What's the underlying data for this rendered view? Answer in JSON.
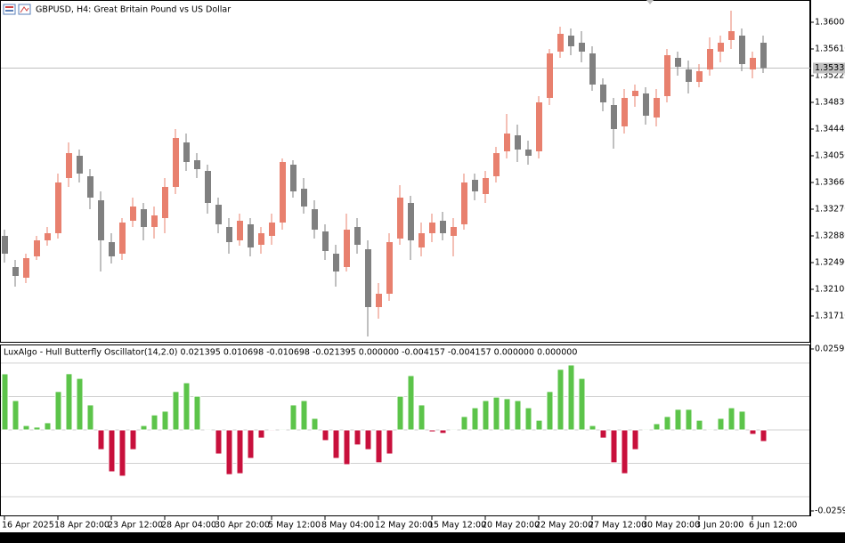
{
  "chart_data": [
    {
      "type": "candlestick",
      "title": "GBPUSD, H4:  Great Britain Pound vs US Dollar",
      "up_color": "#e8806e",
      "down_color": "#808080",
      "open": [
        1.3288,
        1.32425,
        1.32269,
        1.32581,
        1.32815,
        1.32919,
        1.33725,
        1.3405,
        1.33751,
        1.334,
        1.32789,
        1.3262,
        1.33101,
        1.3327,
        1.3301,
        1.3314,
        1.33595,
        1.34245,
        1.33985,
        1.33829,
        1.33335,
        1.3301,
        1.32815,
        1.33049,
        1.3275,
        1.3288,
        1.33075,
        1.3392,
        1.33569,
        1.3327,
        1.32945,
        1.3262,
        1.32425,
        1.3301,
        1.32685,
        1.3184,
        1.32035,
        1.32841,
        1.33361,
        1.32711,
        1.32919,
        1.33101,
        1.3288,
        1.33049,
        1.33699,
        1.33491,
        1.33751,
        1.34115,
        1.34349,
        1.34141,
        1.34115,
        1.34895,
        1.35571,
        1.35805,
        1.35701,
        1.35545,
        1.3509,
        1.34791,
        1.34479,
        1.34921,
        1.3496,
        1.34609,
        1.34921,
        1.3548,
        1.35311,
        1.35129,
        1.35311,
        1.35571,
        1.3574,
        1.35805,
        1.35311,
        1.35701
      ],
      "high": [
        1.32971,
        1.32529,
        1.3262,
        1.3288,
        1.3301,
        1.3379,
        1.34245,
        1.34141,
        1.33855,
        1.3353,
        1.32919,
        1.3314,
        1.33439,
        1.33361,
        1.33309,
        1.33725,
        1.3444,
        1.34375,
        1.34089,
        1.3392,
        1.33439,
        1.3314,
        1.33205,
        1.3314,
        1.3301,
        1.33205,
        1.34011,
        1.33985,
        1.33725,
        1.334,
        1.33049,
        1.3275,
        1.33205,
        1.3314,
        1.32815,
        1.32191,
        1.32919,
        1.33621,
        1.33465,
        1.33075,
        1.33205,
        1.33231,
        1.3314,
        1.3379,
        1.3379,
        1.33829,
        1.3418,
        1.34661,
        1.34505,
        1.34271,
        1.34921,
        1.3561,
        1.35935,
        1.35909,
        1.3587,
        1.35649,
        1.35181,
        1.34895,
        1.35025,
        1.3509,
        1.35051,
        1.35025,
        1.3561,
        1.35571,
        1.35441,
        1.35389,
        1.35779,
        1.35805,
        1.36169,
        1.35909,
        1.35571,
        1.35805
      ],
      "low": [
        1.3249,
        1.32139,
        1.32191,
        1.32529,
        1.32737,
        1.32841,
        1.33595,
        1.3366,
        1.3327,
        1.3236,
        1.32477,
        1.32529,
        1.3301,
        1.32815,
        1.32841,
        1.32919,
        1.33491,
        1.33829,
        1.33725,
        1.33205,
        1.32919,
        1.3262,
        1.32737,
        1.32581,
        1.3262,
        1.3275,
        1.32971,
        1.33439,
        1.33205,
        1.32841,
        1.32529,
        1.32139,
        1.3236,
        1.3262,
        1.31411,
        1.31671,
        1.31931,
        1.3275,
        1.32529,
        1.32581,
        1.32789,
        1.32815,
        1.32581,
        1.32971,
        1.334,
        1.33361,
        1.3366,
        1.34011,
        1.33959,
        1.3392,
        1.34011,
        1.34791,
        1.3548,
        1.35519,
        1.35415,
        1.34999,
        1.347,
        1.34154,
        1.34375,
        1.34765,
        1.34505,
        1.34479,
        1.3483,
        1.3522,
        1.3496,
        1.35051,
        1.3522,
        1.35415,
        1.3561,
        1.35285,
        1.35181,
        1.35259
      ],
      "close": [
        1.3262,
        1.32295,
        1.32555,
        1.32815,
        1.32919,
        1.3366,
        1.34089,
        1.3379,
        1.33439,
        1.32815,
        1.32581,
        1.33075,
        1.33309,
        1.3301,
        1.33179,
        1.33595,
        1.3431,
        1.33959,
        1.33855,
        1.33361,
        1.33049,
        1.32789,
        1.33101,
        1.32711,
        1.32919,
        1.33075,
        1.33959,
        1.3353,
        1.33309,
        1.32971,
        1.32659,
        1.3236,
        1.32971,
        1.3275,
        1.3184,
        1.32035,
        1.32789,
        1.33439,
        1.32815,
        1.32919,
        1.33075,
        1.32919,
        1.3301,
        1.3366,
        1.3353,
        1.33725,
        1.34089,
        1.34375,
        1.34141,
        1.3405,
        1.3483,
        1.35545,
        1.35831,
        1.35649,
        1.35571,
        1.3509,
        1.3483,
        1.3444,
        1.34895,
        1.34999,
        1.34635,
        1.34895,
        1.35519,
        1.3535,
        1.35129,
        1.35285,
        1.3561,
        1.35701,
        1.3587,
        1.35389,
        1.3548,
        1.35331
      ],
      "ylim": [
        1.3132,
        1.36325
      ],
      "yticks": [
        {
          "value": 1.36,
          "label": "1.36000"
        },
        {
          "value": 1.3561,
          "label": "1.35610"
        },
        {
          "value": 1.3522,
          "label": "1.35220"
        },
        {
          "value": 1.3483,
          "label": "1.34830"
        },
        {
          "value": 1.3444,
          "label": "1.34440"
        },
        {
          "value": 1.3405,
          "label": "1.34050"
        },
        {
          "value": 1.3366,
          "label": "1.33660"
        },
        {
          "value": 1.3327,
          "label": "1.33270"
        },
        {
          "value": 1.3288,
          "label": "1.32880"
        },
        {
          "value": 1.3249,
          "label": "1.32490"
        },
        {
          "value": 1.321,
          "label": "1.32100"
        },
        {
          "value": 1.3171,
          "label": "1.31710"
        }
      ],
      "last_price": 1.35331
    },
    {
      "type": "bar",
      "title": "LuxAlgo - Hull Butterfly Oscillator(14,2.0) 0.021395 0.010698 -0.010698 -0.021395 0.000000 -0.004157 -0.004157 0.000000 0.000000",
      "up_color": "#5cc44a",
      "down_color": "#c8103c",
      "categories": [
        "16 Apr 2025",
        null,
        null,
        null,
        null,
        "18 Apr 20:00",
        null,
        null,
        null,
        null,
        "23 Apr 12:00",
        null,
        null,
        null,
        null,
        "28 Apr 04:00",
        null,
        null,
        null,
        null,
        "30 Apr 20:00",
        null,
        null,
        null,
        null,
        "5 May 12:00",
        null,
        null,
        null,
        null,
        "8 May 04:00",
        null,
        null,
        null,
        null,
        "12 May 20:00",
        null,
        null,
        null,
        null,
        "15 May 12:00",
        null,
        null,
        null,
        null,
        "20 May 20:00",
        null,
        null,
        null,
        null,
        "22 May 20:00",
        null,
        null,
        null,
        null,
        "27 May 12:00",
        null,
        null,
        null,
        null,
        "30 May 20:00",
        null,
        null,
        null,
        null,
        "3 Jun 20:00",
        null,
        null,
        null,
        null,
        "6 Jun 12:00",
        null
      ],
      "values": [
        0.01796,
        0.0094,
        0.0014,
        0.0009,
        0.0023,
        0.0123,
        0.018,
        0.0165,
        0.008,
        -0.0063,
        -0.0134,
        -0.0148,
        -0.0063,
        0.0014,
        0.0048,
        0.006,
        0.0123,
        0.0151,
        0.0108,
        0.0003,
        -0.0077,
        -0.0143,
        -0.014,
        -0.0091,
        -0.0026,
        -0.0003,
        0.0003,
        0.008,
        0.0094,
        0.0037,
        -0.0034,
        -0.0091,
        -0.0111,
        -0.0048,
        -0.0063,
        -0.0105,
        -0.0077,
        0.0108,
        0.0174,
        0.008,
        -0.0006,
        -0.0011,
        0.0003,
        0.0043,
        0.0071,
        0.0094,
        0.0105,
        0.01,
        0.0094,
        0.0071,
        0.0031,
        0.0123,
        0.0194,
        0.0208,
        0.0165,
        0.0014,
        -0.0026,
        -0.0105,
        -0.014,
        -0.0063,
        0.0003,
        0.002,
        0.0043,
        0.0066,
        0.0066,
        0.0031,
        0.0003,
        0.0037,
        0.0071,
        0.006,
        -0.0014,
        -0.0037
      ],
      "levels": [
        0.021395,
        0.010698,
        0,
        -0.010698,
        -0.021395
      ],
      "ylim": [
        -0.02765,
        0.02736
      ],
      "yticks": [
        0.025933,
        -0.025933
      ]
    }
  ]
}
